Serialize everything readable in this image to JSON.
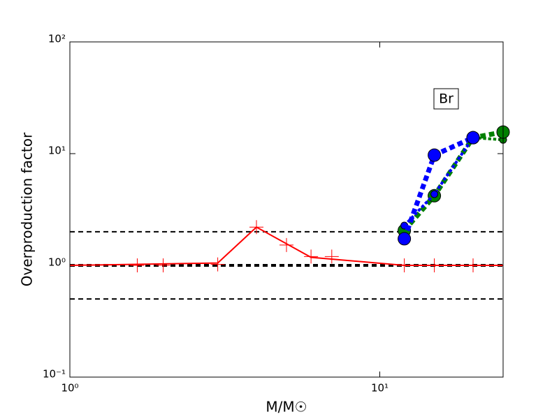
{
  "chart_data": {
    "type": "line",
    "xlabel": "M/M☉",
    "ylabel": "Overproduction factor",
    "xscale": "log",
    "yscale": "log",
    "xlim": [
      1,
      25
    ],
    "ylim": [
      0.1,
      100
    ],
    "xticks": [
      {
        "value": 1,
        "label": "10⁰"
      },
      {
        "value": 10,
        "label": "10¹"
      }
    ],
    "yticks": [
      {
        "value": 0.1,
        "label": "10⁻¹"
      },
      {
        "value": 1,
        "label": "10⁰"
      },
      {
        "value": 10,
        "label": "10¹"
      },
      {
        "value": 100,
        "label": "10²"
      }
    ],
    "hlines": [
      {
        "value": 2,
        "color": "#000000",
        "line_width": 2
      },
      {
        "value": 1,
        "color": "#000000",
        "line_width": 4
      },
      {
        "value": 0.5,
        "color": "#000000",
        "line_width": 2
      }
    ],
    "annotation": "Br",
    "series": [
      {
        "color": "#ff0000",
        "line_style": "solid",
        "line_width": 2,
        "marker": "none",
        "x": [
          1,
          3,
          4,
          6,
          12,
          15,
          20,
          25
        ],
        "values": [
          1.0,
          1.05,
          2.2,
          1.18,
          1.0,
          1.0,
          1.0,
          1.0
        ]
      },
      {
        "color": "#ff0000",
        "line_style": "none",
        "line_width": 0,
        "marker": "plus",
        "marker_size": 10,
        "x": [
          1.65,
          2,
          3,
          4,
          5,
          6,
          7,
          12,
          15,
          20
        ],
        "values": [
          1.0,
          1.0,
          1.02,
          2.2,
          1.52,
          1.2,
          1.2,
          1.0,
          1.0,
          1.0
        ]
      },
      {
        "color": "#008000",
        "line_style": "dotted",
        "line_width": 4,
        "marker": "circle",
        "marker_size": 5,
        "x": [
          20,
          25
        ],
        "values": [
          13.9,
          13.3
        ]
      },
      {
        "color": "#008000",
        "line_style": "dotted",
        "line_width": 7,
        "marker": "circle",
        "marker_size": 9,
        "x": [
          12,
          15,
          20,
          25
        ],
        "values": [
          2.05,
          4.2,
          13.9,
          15.6
        ]
      },
      {
        "color": "#0000ff",
        "line_style": "dotted",
        "line_width": 4,
        "marker": "circle",
        "marker_size": 5,
        "x": [
          12,
          15,
          20
        ],
        "values": [
          2.27,
          4.34,
          13.9
        ]
      },
      {
        "color": "#0000ff",
        "line_style": "dotted",
        "line_width": 7,
        "marker": "circle",
        "marker_size": 9,
        "x": [
          12,
          15,
          20
        ],
        "values": [
          1.73,
          9.7,
          13.9
        ]
      }
    ]
  }
}
